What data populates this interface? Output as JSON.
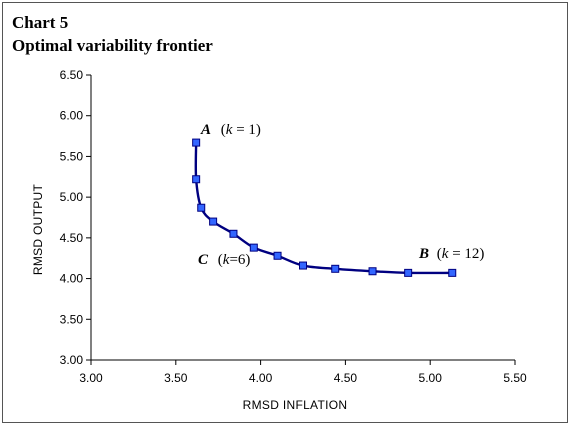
{
  "title": "Chart 5",
  "subtitle": "Optimal variability frontier",
  "chart_data": {
    "type": "line",
    "xlabel": "RMSD  INFLATION",
    "ylabel": "RMSD  OUTPUT",
    "xlim": [
      3.0,
      5.5
    ],
    "ylim": [
      3.0,
      6.5
    ],
    "xticks": [
      "3.00",
      "3.50",
      "4.00",
      "4.50",
      "5.00",
      "5.50"
    ],
    "yticks": [
      "3.00",
      "3.50",
      "4.00",
      "4.50",
      "5.00",
      "5.50",
      "6.00",
      "6.50"
    ],
    "grid": false,
    "legend": "none",
    "line_color": "#000080",
    "marker_color": "#3366ff",
    "series": [
      {
        "x": [
          3.62,
          3.62,
          3.65,
          3.72,
          3.84,
          3.96,
          4.1,
          4.25,
          4.44,
          4.66,
          4.87,
          5.13
        ],
        "y": [
          5.67,
          5.22,
          4.87,
          4.7,
          4.55,
          4.38,
          4.28,
          4.16,
          4.12,
          4.09,
          4.07,
          4.07
        ]
      }
    ],
    "annotations": [
      {
        "letter": "A",
        "rest": "(",
        "k": "k",
        "eq": " = 1)"
      },
      {
        "letter": "C",
        "rest": "(",
        "k": "k",
        "eq": "=6)"
      },
      {
        "letter": "B",
        "rest": "(",
        "k": "k",
        "eq": " = 12)"
      }
    ]
  }
}
